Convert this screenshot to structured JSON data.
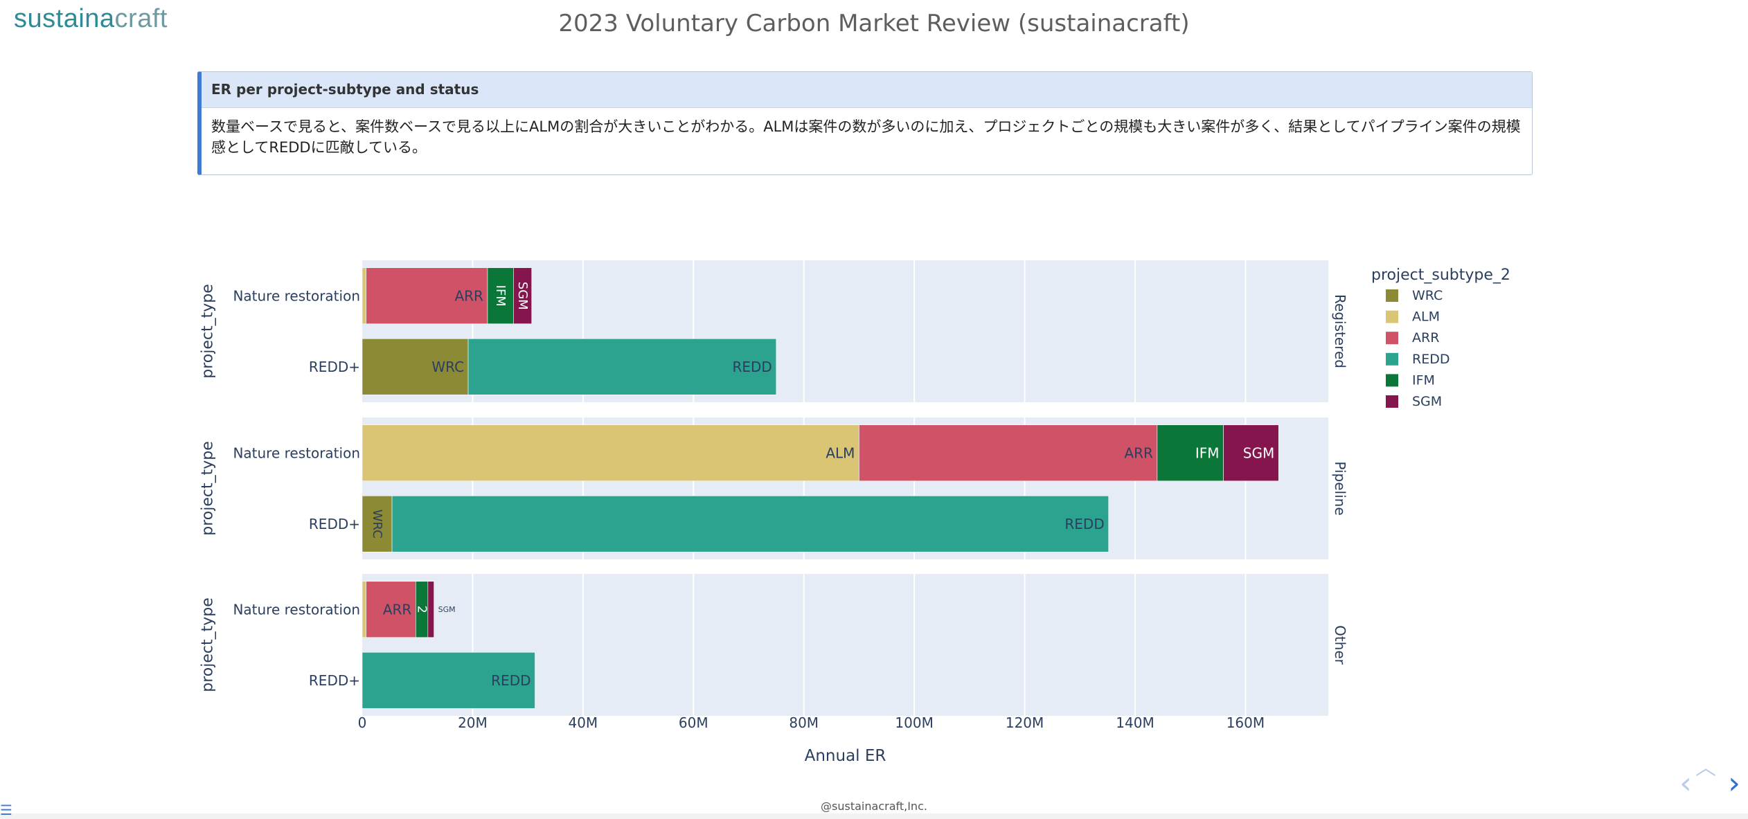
{
  "brand": {
    "logo_main": "sustaina",
    "logo_tail": "craft"
  },
  "page_title": "2023 Voluntary Carbon Market Review (sustainacraft)",
  "callout": {
    "heading": "ER per project-subtype and status",
    "body": "数量ベースで見ると、案件数ベースで見る以上にALMの割合が大きいことがわかる。ALMは案件の数が多いのに加え、プロジェクトごとの規模も大きい案件が多く、結果としてパイプライン案件の規模感としてREDDに匹敵している。"
  },
  "footer": "@sustainacraft,Inc.",
  "icons": {
    "menu": "menu-icon",
    "prev": "chevron-left-icon",
    "next": "chevron-right-icon",
    "up": "chevron-up-icon"
  },
  "chart_data": {
    "type": "bar",
    "orientation": "horizontal",
    "stacked": true,
    "xlabel": "Annual ER",
    "ylabel": "project_type",
    "xlim": [
      0,
      175000000
    ],
    "xticks": [
      0,
      20000000,
      40000000,
      60000000,
      80000000,
      100000000,
      120000000,
      140000000,
      160000000
    ],
    "xtick_labels": [
      "0",
      "20M",
      "40M",
      "60M",
      "80M",
      "100M",
      "120M",
      "140M",
      "160M"
    ],
    "categories": [
      "Nature restoration",
      "REDD+"
    ],
    "legend": {
      "title": "project_subtype_2",
      "placement": "right",
      "entries": [
        {
          "name": "WRC",
          "color": "#8c8a35"
        },
        {
          "name": "ALM",
          "color": "#dac575"
        },
        {
          "name": "ARR",
          "color": "#cf5267"
        },
        {
          "name": "REDD",
          "color": "#2ca38f"
        },
        {
          "name": "IFM",
          "color": "#0a7638"
        },
        {
          "name": "SGM",
          "color": "#84164d"
        }
      ]
    },
    "facets": [
      {
        "status": "Registered",
        "rows": [
          {
            "category": "Nature restoration",
            "segments": [
              {
                "subtype": "ALM",
                "value": 700000,
                "label": ""
              },
              {
                "subtype": "ARR",
                "value": 22000000,
                "label": "ARR"
              },
              {
                "subtype": "IFM",
                "value": 4700000,
                "label": "IFM"
              },
              {
                "subtype": "SGM",
                "value": 3300000,
                "label": "SGM"
              }
            ]
          },
          {
            "category": "REDD+",
            "segments": [
              {
                "subtype": "WRC",
                "value": 19200000,
                "label": "WRC"
              },
              {
                "subtype": "REDD",
                "value": 55800000,
                "label": "REDD"
              }
            ]
          }
        ]
      },
      {
        "status": "Pipeline",
        "rows": [
          {
            "category": "Nature restoration",
            "segments": [
              {
                "subtype": "ALM",
                "value": 90000000,
                "label": "ALM"
              },
              {
                "subtype": "ARR",
                "value": 54000000,
                "label": "ARR"
              },
              {
                "subtype": "IFM",
                "value": 12000000,
                "label": "IFM"
              },
              {
                "subtype": "SGM",
                "value": 10000000,
                "label": "SGM"
              }
            ]
          },
          {
            "category": "REDD+",
            "segments": [
              {
                "subtype": "WRC",
                "value": 5400000,
                "label": "WRC"
              },
              {
                "subtype": "REDD",
                "value": 129800000,
                "label": "REDD"
              }
            ]
          }
        ]
      },
      {
        "status": "Other",
        "rows": [
          {
            "category": "Nature restoration",
            "segments": [
              {
                "subtype": "ALM",
                "value": 700000,
                "label": ""
              },
              {
                "subtype": "ARR",
                "value": 9000000,
                "label": "ARR"
              },
              {
                "subtype": "IFM",
                "value": 2200000,
                "label": "2"
              },
              {
                "subtype": "SGM",
                "value": 1100000,
                "label": "SGM"
              }
            ]
          },
          {
            "category": "REDD+",
            "segments": [
              {
                "subtype": "REDD",
                "value": 31300000,
                "label": "REDD"
              }
            ]
          }
        ]
      }
    ]
  }
}
